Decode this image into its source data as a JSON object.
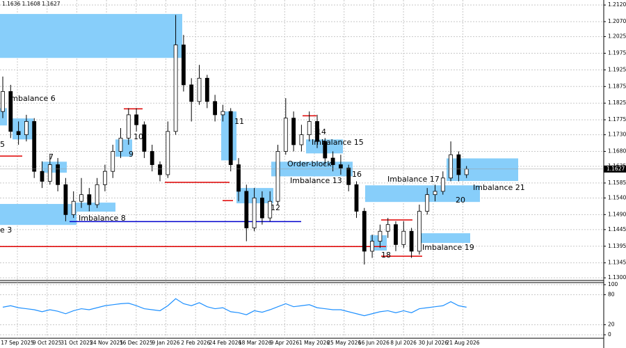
{
  "header": "1.1636 1.1608 1.1627",
  "x_labels": [
    "17 Sep 2025",
    "9 Oct 2025",
    "31 Oct 2025",
    "24 Nov 2025",
    "16 Dec 2025",
    "9 Jan 2026",
    "2 Feb 2026",
    "24 Feb 2026",
    "18 Mar 2026",
    "9 Apr 2026",
    "1 May 2026",
    "25 May 2026",
    "16 Jun 2026",
    "8 Jul 2026",
    "30 Jul 2026",
    "21 Aug 2026"
  ],
  "chart_data": [
    {
      "type": "candlestick",
      "ylim": [
        1.1292,
        1.2135
      ],
      "yticks": [
        {
          "value": 1.212,
          "label": "1.2120"
        },
        {
          "value": 1.207,
          "label": "1.2070"
        },
        1.2025,
        1.1975,
        1.1925,
        1.1875,
        1.1825,
        1.1775,
        {
          "value": 1.173,
          "label": "1.1730"
        },
        {
          "value": 1.168,
          "label": "1.1680"
        },
        1.1635,
        1.1585,
        {
          "value": 1.154,
          "label": "1.1540"
        },
        {
          "value": 1.149,
          "label": "1.1490"
        },
        1.1445,
        1.1395,
        1.1345,
        {
          "value": 1.13,
          "label": "1.1300"
        }
      ],
      "grid": true,
      "last_price": 1.1627,
      "ohlc": [
        [
          1.18,
          1.1905,
          1.178,
          1.186
        ],
        [
          1.186,
          1.188,
          1.172,
          1.174
        ],
        [
          1.174,
          1.177,
          1.17,
          1.173
        ],
        [
          1.173,
          1.179,
          1.171,
          1.177
        ],
        [
          1.177,
          1.178,
          1.16,
          1.162
        ],
        [
          1.162,
          1.165,
          1.157,
          1.159
        ],
        [
          1.159,
          1.167,
          1.158,
          1.164
        ],
        [
          1.164,
          1.166,
          1.156,
          1.158
        ],
        [
          1.158,
          1.16,
          1.147,
          1.149
        ],
        [
          1.149,
          1.156,
          1.148,
          1.153
        ],
        [
          1.153,
          1.16,
          1.151,
          1.155
        ],
        [
          1.155,
          1.157,
          1.15,
          1.152
        ],
        [
          1.152,
          1.16,
          1.151,
          1.158
        ],
        [
          1.158,
          1.164,
          1.156,
          1.162
        ],
        [
          1.162,
          1.17,
          1.16,
          1.168
        ],
        [
          1.168,
          1.175,
          1.166,
          1.172
        ],
        [
          1.172,
          1.181,
          1.17,
          1.179
        ],
        [
          1.179,
          1.181,
          1.174,
          1.176
        ],
        [
          1.176,
          1.177,
          1.166,
          1.168
        ],
        [
          1.168,
          1.17,
          1.162,
          1.164
        ],
        [
          1.164,
          1.165,
          1.159,
          1.161
        ],
        [
          1.161,
          1.177,
          1.16,
          1.174
        ],
        [
          1.174,
          1.209,
          1.173,
          1.2
        ],
        [
          1.2,
          1.203,
          1.186,
          1.188
        ],
        [
          1.188,
          1.19,
          1.177,
          1.183
        ],
        [
          1.183,
          1.194,
          1.182,
          1.19
        ],
        [
          1.19,
          1.191,
          1.181,
          1.183
        ],
        [
          1.183,
          1.185,
          1.177,
          1.179
        ],
        [
          1.179,
          1.182,
          1.177,
          1.18
        ],
        [
          1.18,
          1.181,
          1.162,
          1.164
        ],
        [
          1.164,
          1.166,
          1.153,
          1.156
        ],
        [
          1.156,
          1.158,
          1.141,
          1.145
        ],
        [
          1.145,
          1.157,
          1.144,
          1.154
        ],
        [
          1.154,
          1.156,
          1.146,
          1.148
        ],
        [
          1.148,
          1.156,
          1.147,
          1.153
        ],
        [
          1.153,
          1.17,
          1.152,
          1.168
        ],
        [
          1.168,
          1.184,
          1.167,
          1.178
        ],
        [
          1.178,
          1.18,
          1.168,
          1.17
        ],
        [
          1.17,
          1.176,
          1.168,
          1.173
        ],
        [
          1.173,
          1.18,
          1.171,
          1.177
        ],
        [
          1.177,
          1.179,
          1.169,
          1.171
        ],
        [
          1.171,
          1.172,
          1.164,
          1.166
        ],
        [
          1.166,
          1.168,
          1.162,
          1.164
        ],
        [
          1.164,
          1.167,
          1.161,
          1.163
        ],
        [
          1.163,
          1.164,
          1.156,
          1.158
        ],
        [
          1.158,
          1.159,
          1.148,
          1.15
        ],
        [
          1.15,
          1.151,
          1.134,
          1.138
        ],
        [
          1.138,
          1.143,
          1.136,
          1.141
        ],
        [
          1.141,
          1.146,
          1.139,
          1.144
        ],
        [
          1.144,
          1.148,
          1.142,
          1.146
        ],
        [
          1.146,
          1.147,
          1.138,
          1.14
        ],
        [
          1.14,
          1.147,
          1.139,
          1.144
        ],
        [
          1.144,
          1.145,
          1.136,
          1.138
        ],
        [
          1.138,
          1.152,
          1.137,
          1.15
        ],
        [
          1.15,
          1.157,
          1.149,
          1.155
        ],
        [
          1.155,
          1.158,
          1.153,
          1.156
        ],
        [
          1.156,
          1.162,
          1.155,
          1.16
        ],
        [
          1.16,
          1.171,
          1.159,
          1.167
        ],
        [
          1.167,
          1.168,
          1.159,
          1.161
        ],
        [
          1.161,
          1.1636,
          1.16,
          1.1627
        ]
      ],
      "zone_color": "#87cefa",
      "zones": [
        [
          1.2093,
          1.1961
        ],
        [
          1.181,
          1.1758
        ],
        [
          1.1779,
          1.1716
        ],
        [
          1.1649,
          1.1616
        ],
        [
          1.1716,
          1.1664
        ],
        [
          1.18,
          1.1653
        ],
        [
          1.157,
          1.1524
        ],
        [
          1.1716,
          1.1674
        ],
        [
          1.1649,
          1.1605
        ],
        [
          1.1578,
          1.1528
        ],
        [
          1.1659,
          1.1591
        ],
        [
          1.1434,
          1.1405
        ],
        [
          1.1428,
          1.1382
        ],
        [
          1.1526,
          1.1499
        ],
        [
          1.1522,
          1.1459
        ]
      ],
      "levels": [
        {
          "price": 1.1666,
          "color": "#e00000"
        },
        {
          "price": 1.1808,
          "color": "#e00000"
        },
        {
          "price": 1.1587,
          "color": "#e00000"
        },
        {
          "price": 1.1532,
          "color": "#e00000"
        },
        {
          "price": 1.1469,
          "color": "#0000cd"
        },
        {
          "price": 1.1394,
          "color": "#e00000"
        },
        {
          "price": 1.1365,
          "color": "#e00000"
        },
        {
          "price": 1.1474,
          "color": "#e00000"
        },
        {
          "price": 1.1787,
          "color": "#e00000"
        }
      ],
      "annotations": [
        "Imbalance 6",
        "5",
        "7",
        "9",
        "10",
        "11",
        "12",
        "14",
        "Imbalance 15",
        "Order-block",
        "Imbalance 13",
        "16",
        "Imbalance 17",
        "20",
        "Imbalance 21",
        "Imbalance 19",
        "18",
        "Imbalance 8",
        "e 3"
      ]
    },
    {
      "type": "line",
      "color": "#1e90ff",
      "ylim": [
        0,
        100
      ],
      "yticks": [
        100,
        80,
        20,
        0
      ],
      "values": [
        55,
        58,
        54,
        52,
        50,
        46,
        50,
        47,
        42,
        48,
        52,
        50,
        54,
        58,
        60,
        62,
        63,
        58,
        52,
        50,
        48,
        58,
        72,
        62,
        58,
        64,
        56,
        52,
        54,
        46,
        44,
        40,
        48,
        45,
        50,
        56,
        62,
        56,
        58,
        60,
        54,
        52,
        50,
        50,
        46,
        42,
        38,
        42,
        46,
        48,
        44,
        48,
        44,
        52,
        54,
        56,
        58,
        66,
        58,
        55
      ]
    }
  ]
}
